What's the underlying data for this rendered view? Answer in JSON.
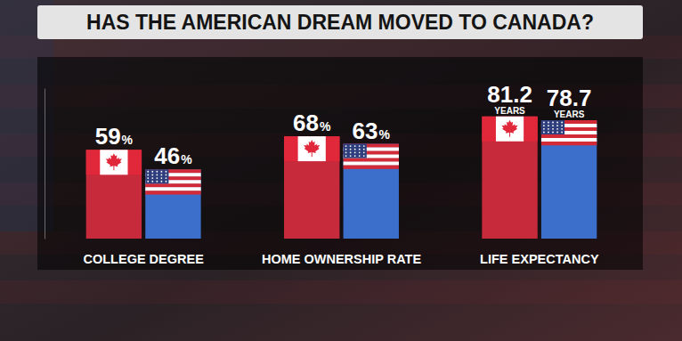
{
  "chart_data": {
    "type": "bar",
    "title": "HAS THE AMERICAN DREAM MOVED TO CANADA?",
    "categories": [
      "COLLEGE DEGREE",
      "HOME OWNERSHIP RATE",
      "LIFE EXPECTANCY"
    ],
    "series": [
      {
        "color": "#c62a3b",
        "values": [
          59,
          68,
          81.2
        ],
        "value_labels": [
          "59%",
          "68%",
          "81.2 YEARS"
        ]
      },
      {
        "color": "#3b6fcb",
        "values": [
          46,
          63,
          78.7
        ],
        "value_labels": [
          "46%",
          "63%",
          "78.7 YEARS"
        ]
      }
    ],
    "ylim": [
      0,
      100
    ],
    "yticks": [],
    "tick_labels": "x",
    "data_labels": true,
    "grid": false
  }
}
